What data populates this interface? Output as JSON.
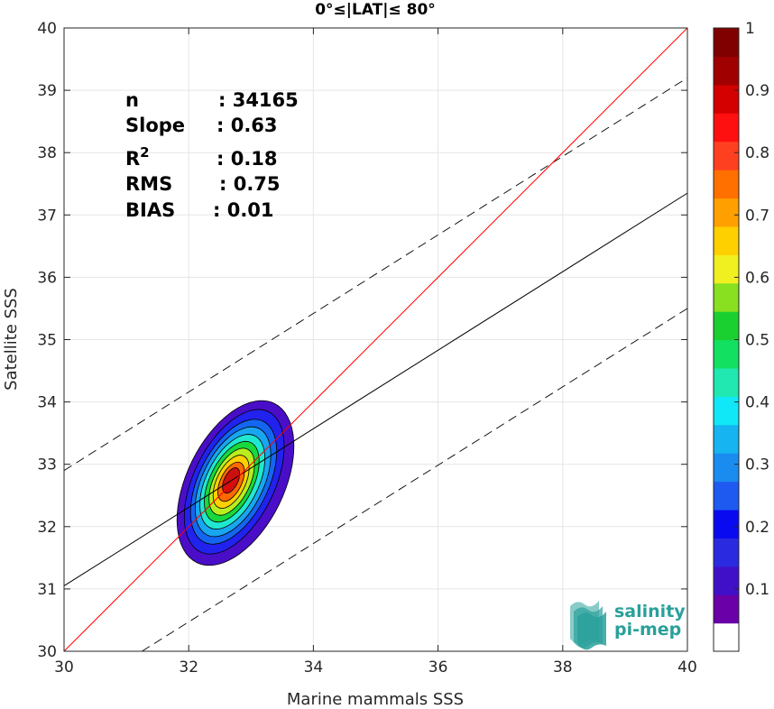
{
  "chart_data": {
    "type": "scatter",
    "subtype": "density-contour",
    "title": "0°≤|LAT|≤ 80°",
    "xlabel": "Marine mammals SSS",
    "ylabel": "Satellite SSS",
    "xlim": [
      30,
      40
    ],
    "ylim": [
      30,
      40
    ],
    "xticks": [
      30,
      32,
      34,
      36,
      38,
      40
    ],
    "yticks": [
      30,
      31,
      32,
      33,
      34,
      35,
      36,
      37,
      38,
      39,
      40
    ],
    "grid": true,
    "stats": [
      {
        "key": "n",
        "sup": "",
        "value": ": 34165"
      },
      {
        "key": "Slope",
        "sup": "",
        "value": ": 0.63"
      },
      {
        "key": "R",
        "sup": "2",
        "value": ": 0.18"
      },
      {
        "key": "RMS",
        "sup": "",
        "value": ": 0.75"
      },
      {
        "key": "BIAS",
        "sup": "",
        "value": ": 0.01"
      }
    ],
    "lines": {
      "one_to_one": {
        "from": [
          30,
          30
        ],
        "to": [
          40,
          40
        ],
        "color": "#ff0000"
      },
      "regression": {
        "from": [
          30,
          31.05
        ],
        "to": [
          40,
          37.35
        ],
        "color": "#000000",
        "style": "solid"
      },
      "upper_bound": {
        "from": [
          30,
          32.9
        ],
        "to": [
          40,
          39.2
        ],
        "color": "#000000",
        "style": "dashed"
      },
      "lower_bound": {
        "from": [
          31.25,
          30
        ],
        "to": [
          40,
          35.5
        ],
        "color": "#000000",
        "style": "dashed"
      }
    },
    "density_peak": {
      "x": 32.7,
      "y": 32.75
    },
    "density_levels": [
      {
        "level": 0.05,
        "cx": 32.75,
        "cy": 32.7,
        "rx": 0.78,
        "ry": 1.42,
        "angle": 26,
        "color": "#4a0ec8"
      },
      {
        "level": 0.15,
        "cx": 32.73,
        "cy": 32.72,
        "rx": 0.65,
        "ry": 1.25,
        "angle": 26,
        "color": "#2222ee"
      },
      {
        "level": 0.25,
        "cx": 32.72,
        "cy": 32.72,
        "rx": 0.56,
        "ry": 1.08,
        "angle": 26,
        "color": "#1466f0"
      },
      {
        "level": 0.3,
        "cx": 32.71,
        "cy": 32.72,
        "rx": 0.49,
        "ry": 0.95,
        "angle": 26,
        "color": "#18a6f0"
      },
      {
        "level": 0.4,
        "cx": 32.7,
        "cy": 32.72,
        "rx": 0.42,
        "ry": 0.82,
        "angle": 26,
        "color": "#20e8d0"
      },
      {
        "level": 0.5,
        "cx": 32.69,
        "cy": 32.72,
        "rx": 0.35,
        "ry": 0.7,
        "angle": 26,
        "color": "#17d83c"
      },
      {
        "level": 0.6,
        "cx": 32.69,
        "cy": 32.72,
        "rx": 0.29,
        "ry": 0.58,
        "angle": 26,
        "color": "#b8ee20"
      },
      {
        "level": 0.7,
        "cx": 32.68,
        "cy": 32.72,
        "rx": 0.23,
        "ry": 0.46,
        "angle": 26,
        "color": "#ffd000"
      },
      {
        "level": 0.8,
        "cx": 32.68,
        "cy": 32.72,
        "rx": 0.17,
        "ry": 0.34,
        "angle": 26,
        "color": "#ff6a00"
      },
      {
        "level": 0.9,
        "cx": 32.68,
        "cy": 32.74,
        "rx": 0.11,
        "ry": 0.22,
        "angle": 26,
        "color": "#cc1010"
      }
    ],
    "colorbar": {
      "ticks": [
        "0.1",
        "0.2",
        "0.3",
        "0.4",
        "0.5",
        "0.6",
        "0.7",
        "0.8",
        "0.9",
        "1"
      ],
      "range": [
        0,
        1
      ],
      "colors": [
        "#ffffff",
        "#6a00a8",
        "#4010c8",
        "#2a2ae0",
        "#0a0af0",
        "#1e5af0",
        "#1a8cf0",
        "#16b4f0",
        "#10e8f8",
        "#20e8b0",
        "#12e060",
        "#1ad030",
        "#88e020",
        "#f0f020",
        "#ffd000",
        "#ffa000",
        "#ff7000",
        "#ff4020",
        "#ff1010",
        "#d40000",
        "#a00000",
        "#800000"
      ]
    },
    "colors": {
      "one_to_one": "#ff0000",
      "grid": "#e5e5e5"
    }
  },
  "logo": {
    "line1": "salinity",
    "line2": "pi-mep"
  }
}
